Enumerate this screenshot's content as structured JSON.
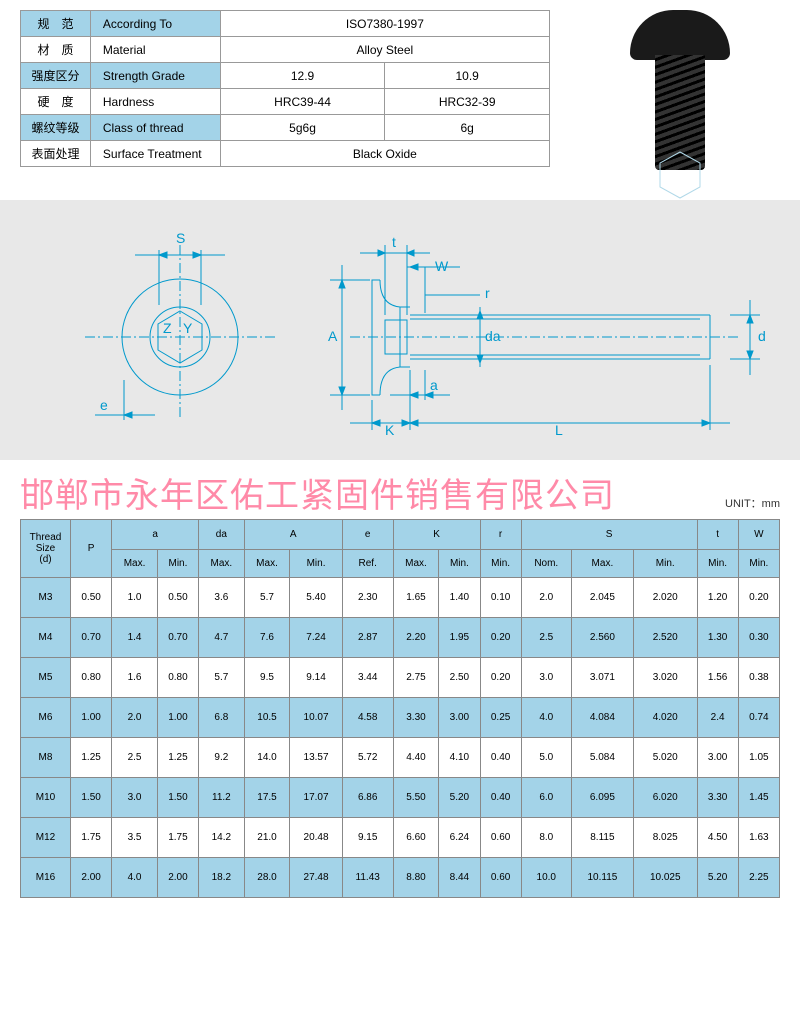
{
  "spec": {
    "rows": [
      {
        "cn": "规　范",
        "en": "According To",
        "vals": [
          "ISO7380-1997"
        ],
        "span": 2,
        "hdr": true
      },
      {
        "cn": "材　质",
        "en": "Material",
        "vals": [
          "Alloy Steel"
        ],
        "span": 2,
        "hdr": false
      },
      {
        "cn": "强度区分",
        "en": "Strength Grade",
        "vals": [
          "12.9",
          "10.9"
        ],
        "span": 1,
        "hdr": true
      },
      {
        "cn": "硬　度",
        "en": "Hardness",
        "vals": [
          "HRC39-44",
          "HRC32-39"
        ],
        "span": 1,
        "hdr": false
      },
      {
        "cn": "螺纹等级",
        "en": "Class of thread",
        "vals": [
          "5g6g",
          "6g"
        ],
        "span": 1,
        "hdr": true
      },
      {
        "cn": "表面处理",
        "en": "Surface Treatment",
        "vals": [
          "Black Oxide"
        ],
        "span": 2,
        "hdr": false
      }
    ],
    "valcol_width": 165
  },
  "diagram_labels": {
    "S": "S",
    "Z": "Z",
    "Y": "Y",
    "e": "e",
    "t": "t",
    "W": "W",
    "r": "r",
    "A": "A",
    "da": "da",
    "d": "d",
    "a": "a",
    "K": "K",
    "L": "L"
  },
  "watermark": "邯郸市永年区佑工紧固件销售有限公司",
  "unit": "UNIT：mm",
  "columns": {
    "group": [
      "Thread Size (d)",
      "P",
      "a",
      "da",
      "A",
      "e",
      "K",
      "r",
      "S",
      "t",
      "W"
    ],
    "group_span": [
      1,
      1,
      2,
      1,
      2,
      1,
      2,
      1,
      3,
      1,
      1
    ],
    "sub": [
      "",
      "",
      "Max.",
      "Min.",
      "Max.",
      "Max.",
      "Min.",
      "Ref.",
      "Max.",
      "Min.",
      "Min.",
      "Nom.",
      "Max.",
      "Min.",
      "Min.",
      "Min."
    ]
  },
  "rows": [
    [
      "M3",
      "0.50",
      "1.0",
      "0.50",
      "3.6",
      "5.7",
      "5.40",
      "2.30",
      "1.65",
      "1.40",
      "0.10",
      "2.0",
      "2.045",
      "2.020",
      "1.20",
      "0.20"
    ],
    [
      "M4",
      "0.70",
      "1.4",
      "0.70",
      "4.7",
      "7.6",
      "7.24",
      "2.87",
      "2.20",
      "1.95",
      "0.20",
      "2.5",
      "2.560",
      "2.520",
      "1.30",
      "0.30"
    ],
    [
      "M5",
      "0.80",
      "1.6",
      "0.80",
      "5.7",
      "9.5",
      "9.14",
      "3.44",
      "2.75",
      "2.50",
      "0.20",
      "3.0",
      "3.071",
      "3.020",
      "1.56",
      "0.38"
    ],
    [
      "M6",
      "1.00",
      "2.0",
      "1.00",
      "6.8",
      "10.5",
      "10.07",
      "4.58",
      "3.30",
      "3.00",
      "0.25",
      "4.0",
      "4.084",
      "4.020",
      "2.4",
      "0.74"
    ],
    [
      "M8",
      "1.25",
      "2.5",
      "1.25",
      "9.2",
      "14.0",
      "13.57",
      "5.72",
      "4.40",
      "4.10",
      "0.40",
      "5.0",
      "5.084",
      "5.020",
      "3.00",
      "1.05"
    ],
    [
      "M10",
      "1.50",
      "3.0",
      "1.50",
      "11.2",
      "17.5",
      "17.07",
      "6.86",
      "5.50",
      "5.20",
      "0.40",
      "6.0",
      "6.095",
      "6.020",
      "3.30",
      "1.45"
    ],
    [
      "M12",
      "1.75",
      "3.5",
      "1.75",
      "14.2",
      "21.0",
      "20.48",
      "9.15",
      "6.60",
      "6.24",
      "0.60",
      "8.0",
      "8.115",
      "8.025",
      "4.50",
      "1.63"
    ],
    [
      "M16",
      "2.00",
      "4.0",
      "2.00",
      "18.2",
      "28.0",
      "27.48",
      "11.43",
      "8.80",
      "8.44",
      "0.60",
      "10.0",
      "10.115",
      "10.025",
      "5.20",
      "2.25"
    ]
  ],
  "colors": {
    "header_bg": "#a3d3e8",
    "border": "#888",
    "watermark": "#ff8aa8",
    "dia_line": "#0099cc",
    "dia_bg": "#e8e8e8",
    "screw": "#1a1a1a"
  }
}
